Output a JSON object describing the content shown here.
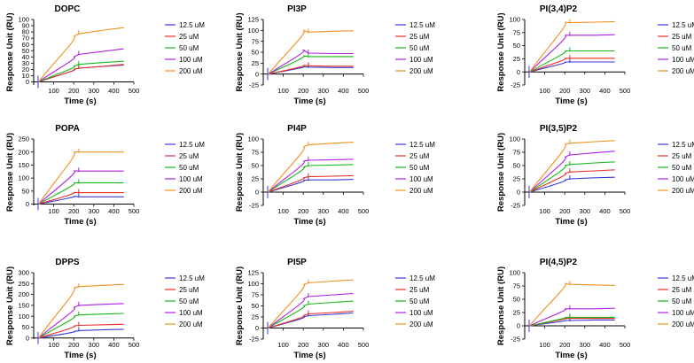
{
  "figure": {
    "legend_entries": [
      "12.5 uM",
      "25 uM",
      "50 uM",
      "100 uM",
      "200 uM"
    ],
    "series_colors": [
      "#3a3ad8",
      "#e8302a",
      "#18b818",
      "#b020e0",
      "#f09020"
    ],
    "xlabel": "Time (s)",
    "ylabel": "Response Unit (RU)"
  },
  "chart_data": [
    {
      "type": "line",
      "title": "DOPC",
      "xlabel": "Time (s)",
      "ylabel": "Response Unit (RU)",
      "xlim": [
        0,
        500
      ],
      "ylim": [
        -5,
        100
      ],
      "xticks": [
        "100",
        "200",
        "300",
        "400",
        "500"
      ],
      "yticks": [
        "0",
        "10",
        "20",
        "30",
        "40",
        "50",
        "60",
        "70",
        "80",
        "90",
        "100"
      ],
      "series": [
        {
          "name": "12.5 uM",
          "values": [
            0,
            16,
            20,
            22,
            25,
            27
          ]
        },
        {
          "name": "25 uM",
          "values": [
            0,
            16,
            20,
            22,
            25,
            28
          ]
        },
        {
          "name": "50 uM",
          "values": [
            0,
            20,
            25,
            28,
            31,
            33
          ]
        },
        {
          "name": "100 uM",
          "values": [
            0,
            32,
            40,
            44,
            49,
            53
          ]
        },
        {
          "name": "200 uM",
          "values": [
            0,
            58,
            73,
            77,
            83,
            87
          ]
        }
      ]
    },
    {
      "type": "line",
      "title": "PI3P",
      "xlabel": "Time (s)",
      "ylabel": "Response Unit (RU)",
      "xlim": [
        0,
        500
      ],
      "ylim": [
        -25,
        125
      ],
      "xticks": [
        "100",
        "200",
        "300",
        "400",
        "500"
      ],
      "yticks": [
        "-25",
        "0",
        "25",
        "50",
        "75",
        "100",
        "125"
      ],
      "series": [
        {
          "name": "12.5 uM",
          "values": [
            0,
            12,
            17,
            16,
            15,
            15
          ]
        },
        {
          "name": "25 uM",
          "values": [
            0,
            14,
            20,
            19,
            18,
            18
          ]
        },
        {
          "name": "50 uM",
          "values": [
            0,
            30,
            42,
            40,
            40,
            40
          ]
        },
        {
          "name": "100 uM",
          "values": [
            0,
            40,
            55,
            48,
            47,
            47
          ]
        },
        {
          "name": "200 uM",
          "values": [
            0,
            75,
            100,
            96,
            98,
            99
          ]
        }
      ]
    },
    {
      "type": "line",
      "title": "PI(3,4)P2",
      "xlabel": "Time (s)",
      "ylabel": "Response Unit (RU)",
      "xlim": [
        0,
        500
      ],
      "ylim": [
        -25,
        100
      ],
      "xticks": [
        "100",
        "200",
        "300",
        "400",
        "500"
      ],
      "yticks": [
        "-25",
        "0",
        "25",
        "50",
        "75",
        "100"
      ],
      "series": [
        {
          "name": "12.5 uM",
          "values": [
            0,
            14,
            19,
            19,
            19,
            19
          ]
        },
        {
          "name": "25 uM",
          "values": [
            0,
            19,
            26,
            26,
            26,
            26
          ]
        },
        {
          "name": "50 uM",
          "values": [
            0,
            30,
            40,
            40,
            40,
            40
          ]
        },
        {
          "name": "100 uM",
          "values": [
            0,
            52,
            70,
            70,
            70,
            71
          ]
        },
        {
          "name": "200 uM",
          "values": [
            0,
            75,
            95,
            94,
            95,
            96
          ]
        }
      ]
    },
    {
      "type": "line",
      "title": "POPA",
      "xlabel": "Time (s)",
      "ylabel": "Response Unit (RU)",
      "xlim": [
        0,
        500
      ],
      "ylim": [
        -5,
        250
      ],
      "xticks": [
        "100",
        "200",
        "300",
        "400",
        "500"
      ],
      "yticks": [
        "0",
        "50",
        "100",
        "150",
        "200",
        "250"
      ],
      "series": [
        {
          "name": "12.5 uM",
          "values": [
            0,
            22,
            30,
            28,
            28,
            28
          ]
        },
        {
          "name": "25 uM",
          "values": [
            0,
            32,
            45,
            44,
            44,
            44
          ]
        },
        {
          "name": "50 uM",
          "values": [
            0,
            60,
            82,
            82,
            82,
            82
          ]
        },
        {
          "name": "100 uM",
          "values": [
            0,
            95,
            128,
            127,
            127,
            127
          ]
        },
        {
          "name": "200 uM",
          "values": [
            0,
            155,
            200,
            200,
            200,
            200
          ]
        }
      ]
    },
    {
      "type": "line",
      "title": "PI4P",
      "xlabel": "Time (s)",
      "ylabel": "Response Unit (RU)",
      "xlim": [
        0,
        500
      ],
      "ylim": [
        -25,
        100
      ],
      "xticks": [
        "100",
        "200",
        "300",
        "400",
        "500"
      ],
      "yticks": [
        "-25",
        "0",
        "25",
        "50",
        "75",
        "100"
      ],
      "series": [
        {
          "name": "12.5 uM",
          "values": [
            0,
            16,
            22,
            23,
            23,
            24
          ]
        },
        {
          "name": "25 uM",
          "values": [
            0,
            20,
            27,
            29,
            30,
            31
          ]
        },
        {
          "name": "50 uM",
          "values": [
            0,
            36,
            47,
            50,
            51,
            52
          ]
        },
        {
          "name": "100 uM",
          "values": [
            0,
            45,
            58,
            60,
            61,
            62
          ]
        },
        {
          "name": "200 uM",
          "values": [
            0,
            68,
            85,
            89,
            92,
            94
          ]
        }
      ]
    },
    {
      "type": "line",
      "title": "PI(3,5)P2",
      "xlabel": "Time (s)",
      "ylabel": "Response Unit (RU)",
      "xlim": [
        0,
        500
      ],
      "ylim": [
        -25,
        100
      ],
      "xticks": [
        "100",
        "200",
        "300",
        "400",
        "500"
      ],
      "yticks": [
        "-25",
        "0",
        "25",
        "50",
        "75",
        "100"
      ],
      "series": [
        {
          "name": "12.5 uM",
          "values": [
            0,
            16,
            23,
            25,
            27,
            28
          ]
        },
        {
          "name": "25 uM",
          "values": [
            0,
            26,
            35,
            38,
            40,
            42
          ]
        },
        {
          "name": "50 uM",
          "values": [
            0,
            36,
            50,
            52,
            55,
            57
          ]
        },
        {
          "name": "100 uM",
          "values": [
            0,
            50,
            66,
            70,
            74,
            77
          ]
        },
        {
          "name": "200 uM",
          "values": [
            0,
            70,
            90,
            92,
            95,
            97
          ]
        }
      ]
    },
    {
      "type": "line",
      "title": "DPPS",
      "xlabel": "Time (s)",
      "ylabel": "Response Unit (RU)",
      "xlim": [
        0,
        500
      ],
      "ylim": [
        -5,
        300
      ],
      "xticks": [
        "100",
        "200",
        "300",
        "400",
        "500"
      ],
      "yticks": [
        "0",
        "50",
        "100",
        "150",
        "200",
        "250",
        "300"
      ],
      "series": [
        {
          "name": "12.5 uM",
          "values": [
            0,
            22,
            30,
            34,
            38,
            40
          ]
        },
        {
          "name": "25 uM",
          "values": [
            0,
            40,
            55,
            58,
            61,
            63
          ]
        },
        {
          "name": "50 uM",
          "values": [
            0,
            78,
            100,
            106,
            110,
            113
          ]
        },
        {
          "name": "100 uM",
          "values": [
            0,
            110,
            140,
            150,
            155,
            158
          ]
        },
        {
          "name": "200 uM",
          "values": [
            0,
            180,
            230,
            236,
            242,
            246
          ]
        }
      ]
    },
    {
      "type": "line",
      "title": "PI5P",
      "xlabel": "Time (s)",
      "ylabel": "Response Unit (RU)",
      "xlim": [
        0,
        500
      ],
      "ylim": [
        -25,
        125
      ],
      "xticks": [
        "100",
        "200",
        "300",
        "400",
        "500"
      ],
      "yticks": [
        "-25",
        "0",
        "25",
        "50",
        "75",
        "100",
        "125"
      ],
      "series": [
        {
          "name": "12.5 uM",
          "values": [
            0,
            18,
            25,
            28,
            31,
            34
          ]
        },
        {
          "name": "25 uM",
          "values": [
            0,
            20,
            28,
            32,
            35,
            38
          ]
        },
        {
          "name": "50 uM",
          "values": [
            0,
            38,
            50,
            54,
            58,
            61
          ]
        },
        {
          "name": "100 uM",
          "values": [
            0,
            50,
            66,
            71,
            75,
            78
          ]
        },
        {
          "name": "200 uM",
          "values": [
            0,
            75,
            98,
            102,
            106,
            109
          ]
        }
      ]
    },
    {
      "type": "line",
      "title": "PI(4,5)P2",
      "xlabel": "Time (s)",
      "ylabel": "Response Unit (RU)",
      "xlim": [
        0,
        500
      ],
      "ylim": [
        -25,
        100
      ],
      "xticks": [
        "100",
        "200",
        "300",
        "400",
        "500"
      ],
      "yticks": [
        "-25",
        "0",
        "25",
        "50",
        "75",
        "100"
      ],
      "series": [
        {
          "name": "12.5 uM",
          "values": [
            0,
            8,
            10,
            10,
            11,
            11
          ]
        },
        {
          "name": "25 uM",
          "values": [
            0,
            10,
            14,
            14,
            14,
            14
          ]
        },
        {
          "name": "50 uM",
          "values": [
            0,
            12,
            16,
            16,
            16,
            16
          ]
        },
        {
          "name": "100 uM",
          "values": [
            0,
            25,
            32,
            32,
            32,
            33
          ]
        },
        {
          "name": "200 uM",
          "values": [
            0,
            65,
            80,
            78,
            77,
            76
          ]
        }
      ]
    }
  ]
}
